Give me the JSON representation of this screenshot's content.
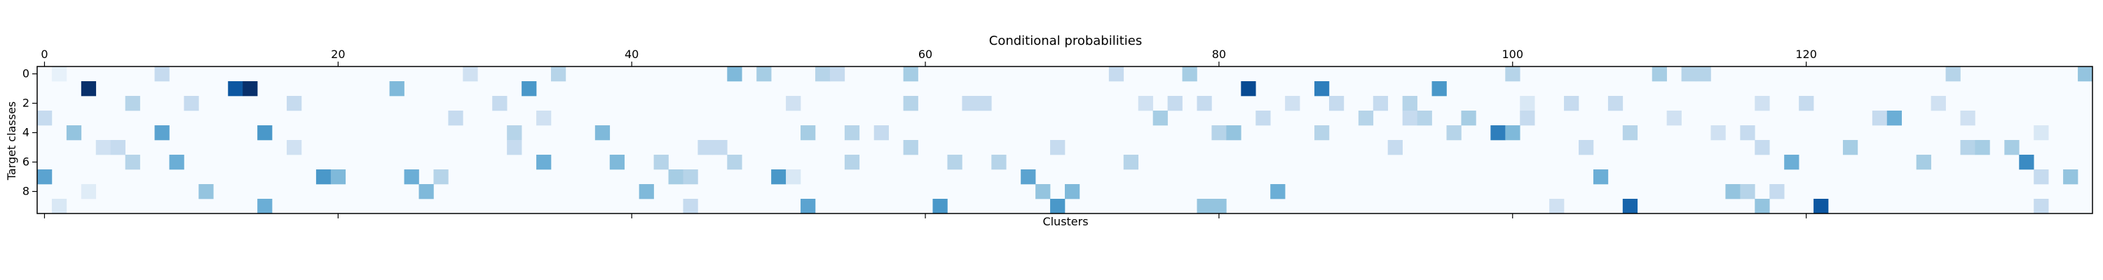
{
  "chart_data": {
    "type": "heatmap",
    "title": "Conditional probabilities",
    "xlabel": "Clusters",
    "ylabel": "Target classes",
    "n_cols": 140,
    "n_rows": 10,
    "x_ticks": [
      0,
      20,
      40,
      60,
      80,
      100,
      120
    ],
    "y_ticks": [
      0,
      2,
      4,
      6,
      8
    ],
    "x_axis_position": "top",
    "colormap": "Blues",
    "value_range": [
      0,
      1
    ],
    "grid": false,
    "cells": [
      [
        0,
        8,
        0.25
      ],
      [
        0,
        29,
        0.2
      ],
      [
        0,
        35,
        0.3
      ],
      [
        0,
        47,
        0.45
      ],
      [
        0,
        49,
        0.35
      ],
      [
        0,
        53,
        0.3
      ],
      [
        0,
        54,
        0.25
      ],
      [
        0,
        59,
        0.35
      ],
      [
        0,
        73,
        0.25
      ],
      [
        0,
        78,
        0.35
      ],
      [
        0,
        100,
        0.3
      ],
      [
        0,
        110,
        0.35
      ],
      [
        0,
        112,
        0.3
      ],
      [
        0,
        113,
        0.3
      ],
      [
        0,
        130,
        0.3
      ],
      [
        0,
        139,
        0.4
      ],
      [
        0,
        1,
        0.08
      ],
      [
        1,
        3,
        1.0
      ],
      [
        1,
        13,
        0.85
      ],
      [
        1,
        14,
        1.0
      ],
      [
        1,
        24,
        0.45
      ],
      [
        1,
        33,
        0.6
      ],
      [
        1,
        82,
        0.9
      ],
      [
        1,
        87,
        0.7
      ],
      [
        1,
        95,
        0.6
      ],
      [
        2,
        6,
        0.3
      ],
      [
        2,
        10,
        0.25
      ],
      [
        2,
        17,
        0.25
      ],
      [
        2,
        31,
        0.25
      ],
      [
        2,
        51,
        0.2
      ],
      [
        2,
        59,
        0.3
      ],
      [
        2,
        63,
        0.25
      ],
      [
        2,
        64,
        0.25
      ],
      [
        2,
        75,
        0.2
      ],
      [
        2,
        77,
        0.25
      ],
      [
        2,
        79,
        0.25
      ],
      [
        2,
        85,
        0.2
      ],
      [
        2,
        88,
        0.25
      ],
      [
        2,
        91,
        0.25
      ],
      [
        2,
        93,
        0.3
      ],
      [
        2,
        101,
        0.15
      ],
      [
        2,
        104,
        0.25
      ],
      [
        2,
        107,
        0.25
      ],
      [
        2,
        117,
        0.2
      ],
      [
        2,
        120,
        0.25
      ],
      [
        2,
        129,
        0.2
      ],
      [
        3,
        0,
        0.25
      ],
      [
        3,
        28,
        0.25
      ],
      [
        3,
        34,
        0.2
      ],
      [
        3,
        76,
        0.35
      ],
      [
        3,
        83,
        0.25
      ],
      [
        3,
        90,
        0.3
      ],
      [
        3,
        93,
        0.25
      ],
      [
        3,
        94,
        0.3
      ],
      [
        3,
        97,
        0.35
      ],
      [
        3,
        101,
        0.25
      ],
      [
        3,
        111,
        0.2
      ],
      [
        3,
        125,
        0.25
      ],
      [
        3,
        126,
        0.5
      ],
      [
        3,
        131,
        0.2
      ],
      [
        4,
        2,
        0.4
      ],
      [
        4,
        8,
        0.55
      ],
      [
        4,
        15,
        0.6
      ],
      [
        4,
        32,
        0.3
      ],
      [
        4,
        38,
        0.45
      ],
      [
        4,
        52,
        0.35
      ],
      [
        4,
        55,
        0.3
      ],
      [
        4,
        57,
        0.25
      ],
      [
        4,
        80,
        0.3
      ],
      [
        4,
        81,
        0.4
      ],
      [
        4,
        87,
        0.3
      ],
      [
        4,
        96,
        0.3
      ],
      [
        4,
        99,
        0.7
      ],
      [
        4,
        100,
        0.45
      ],
      [
        4,
        108,
        0.3
      ],
      [
        4,
        114,
        0.2
      ],
      [
        4,
        116,
        0.25
      ],
      [
        4,
        136,
        0.15
      ],
      [
        5,
        4,
        0.2
      ],
      [
        5,
        5,
        0.25
      ],
      [
        5,
        17,
        0.2
      ],
      [
        5,
        32,
        0.25
      ],
      [
        5,
        45,
        0.25
      ],
      [
        5,
        46,
        0.25
      ],
      [
        5,
        59,
        0.3
      ],
      [
        5,
        69,
        0.25
      ],
      [
        5,
        92,
        0.25
      ],
      [
        5,
        105,
        0.25
      ],
      [
        5,
        117,
        0.25
      ],
      [
        5,
        123,
        0.35
      ],
      [
        5,
        131,
        0.3
      ],
      [
        5,
        132,
        0.35
      ],
      [
        5,
        134,
        0.35
      ],
      [
        6,
        6,
        0.3
      ],
      [
        6,
        9,
        0.5
      ],
      [
        6,
        34,
        0.5
      ],
      [
        6,
        39,
        0.45
      ],
      [
        6,
        42,
        0.3
      ],
      [
        6,
        47,
        0.3
      ],
      [
        6,
        55,
        0.3
      ],
      [
        6,
        62,
        0.3
      ],
      [
        6,
        65,
        0.3
      ],
      [
        6,
        74,
        0.3
      ],
      [
        6,
        119,
        0.5
      ],
      [
        6,
        128,
        0.35
      ],
      [
        6,
        135,
        0.65
      ],
      [
        7,
        0,
        0.55
      ],
      [
        7,
        19,
        0.6
      ],
      [
        7,
        20,
        0.45
      ],
      [
        7,
        25,
        0.5
      ],
      [
        7,
        27,
        0.3
      ],
      [
        7,
        43,
        0.35
      ],
      [
        7,
        44,
        0.3
      ],
      [
        7,
        50,
        0.6
      ],
      [
        7,
        51,
        0.15
      ],
      [
        7,
        67,
        0.55
      ],
      [
        7,
        106,
        0.5
      ],
      [
        7,
        136,
        0.25
      ],
      [
        7,
        138,
        0.4
      ],
      [
        8,
        11,
        0.4
      ],
      [
        8,
        26,
        0.45
      ],
      [
        8,
        41,
        0.45
      ],
      [
        8,
        68,
        0.4
      ],
      [
        8,
        70,
        0.45
      ],
      [
        8,
        84,
        0.5
      ],
      [
        8,
        115,
        0.4
      ],
      [
        8,
        116,
        0.3
      ],
      [
        8,
        118,
        0.25
      ],
      [
        8,
        3,
        0.12
      ],
      [
        9,
        1,
        0.15
      ],
      [
        9,
        15,
        0.5
      ],
      [
        9,
        44,
        0.25
      ],
      [
        9,
        52,
        0.55
      ],
      [
        9,
        61,
        0.6
      ],
      [
        9,
        69,
        0.6
      ],
      [
        9,
        79,
        0.4
      ],
      [
        9,
        80,
        0.4
      ],
      [
        9,
        103,
        0.2
      ],
      [
        9,
        108,
        0.8
      ],
      [
        9,
        117,
        0.4
      ],
      [
        9,
        121,
        0.85
      ],
      [
        9,
        136,
        0.25
      ]
    ]
  }
}
